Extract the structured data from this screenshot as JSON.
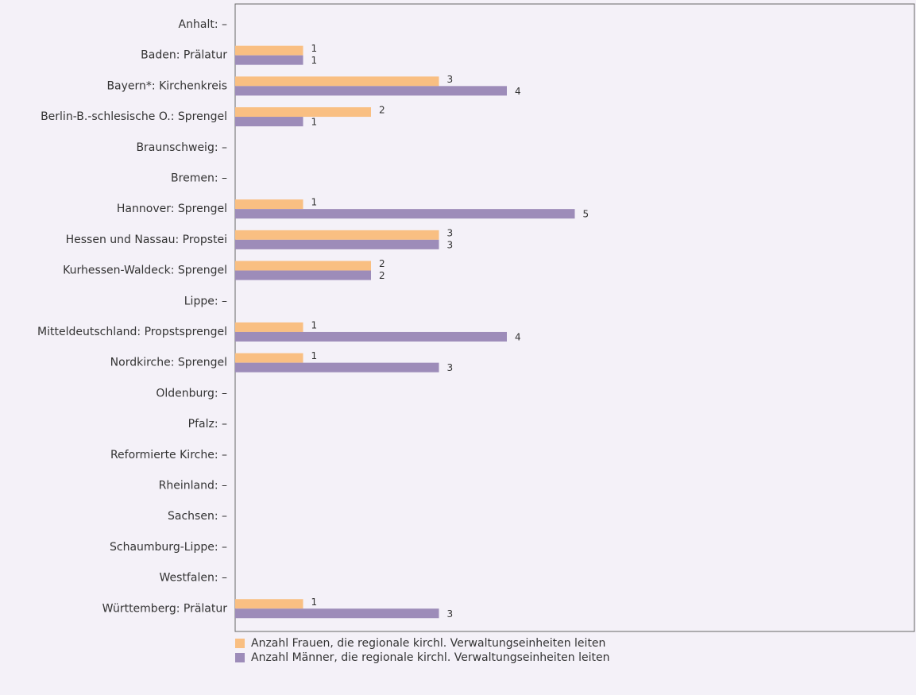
{
  "chart_data": {
    "type": "hbar",
    "categories": [
      "Anhalt: –",
      "Baden: Prälatur",
      "Bayern*: Kirchenkreis",
      "Berlin-B.-schlesische O.: Sprengel",
      "Braunschweig: –",
      "Bremen: –",
      "Hannover: Sprengel",
      "Hessen und Nassau: Propstei",
      "Kurhessen-Waldeck: Sprengel",
      "Lippe: –",
      "Mitteldeutschland: Propstsprengel",
      "Nordkirche: Sprengel",
      "Oldenburg: –",
      "Pfalz: –",
      "Reformierte Kirche: –",
      "Rheinland: –",
      "Sachsen: –",
      "Schaumburg-Lippe: –",
      "Westfalen: –",
      "Württemberg: Prälatur"
    ],
    "series": [
      {
        "name": "Anzahl Frauen, die regionale kirchl. Verwaltungseinheiten leiten",
        "color": "#f9bf82",
        "values": [
          null,
          1,
          3,
          2,
          null,
          null,
          1,
          3,
          2,
          null,
          1,
          1,
          null,
          null,
          null,
          null,
          null,
          null,
          null,
          1
        ]
      },
      {
        "name": "Anzahl Männer, die regionale kirchl. Verwaltungseinheiten leiten",
        "color": "#9d8cb9",
        "values": [
          null,
          1,
          4,
          1,
          null,
          null,
          5,
          3,
          2,
          null,
          4,
          3,
          null,
          null,
          null,
          null,
          null,
          null,
          null,
          3
        ]
      }
    ],
    "xlim": [
      0,
      10
    ]
  }
}
